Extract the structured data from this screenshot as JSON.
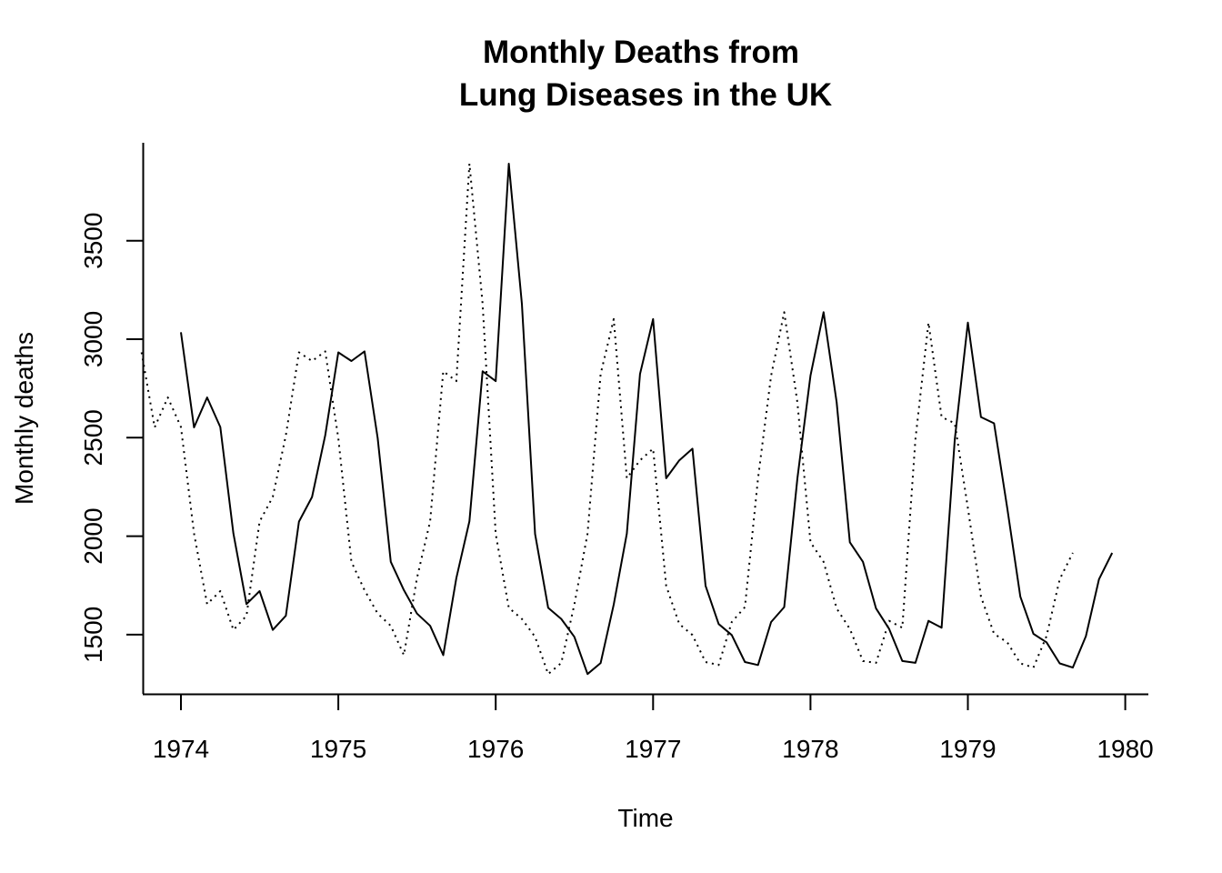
{
  "chart_data": {
    "type": "line",
    "title": [
      "Monthly Deaths from",
      "Lung Diseases in the UK"
    ],
    "xlabel": "Time",
    "ylabel": "Monthly deaths",
    "x_ticks": [
      1974,
      1975,
      1976,
      1977,
      1978,
      1979,
      1980
    ],
    "y_ticks": [
      1500,
      2000,
      2500,
      3000,
      3500
    ],
    "xlim": [
      1973.75,
      1980.16
    ],
    "ylim": [
      1200,
      4000
    ],
    "grid": false,
    "series": [
      {
        "style": "solid",
        "start": 1974.0,
        "step": 0.08333333,
        "values": [
          3035,
          2552,
          2704,
          2554,
          2014,
          1655,
          1721,
          1524,
          1596,
          2074,
          2199,
          2512,
          2933,
          2889,
          2938,
          2497,
          1870,
          1726,
          1607,
          1545,
          1396,
          1787,
          2076,
          2837,
          2787,
          3891,
          3179,
          2011,
          1636,
          1580,
          1489,
          1300,
          1356,
          1653,
          2013,
          2823,
          3102,
          2294,
          2385,
          2444,
          1748,
          1554,
          1498,
          1361,
          1346,
          1564,
          1640,
          2293,
          2815,
          3137,
          2679,
          1969,
          1870,
          1633,
          1529,
          1366,
          1357,
          1570,
          1535,
          2491,
          3084,
          2605,
          2573,
          2143,
          1693,
          1504,
          1461,
          1354,
          1333,
          1492,
          1781,
          1915
        ]
      },
      {
        "style": "dotted",
        "start": 1973.75,
        "step": 0.08333333,
        "values": [
          2933,
          2552,
          2704,
          2554,
          2014,
          1655,
          1721,
          1524,
          1596,
          2074,
          2199,
          2512,
          2933,
          2889,
          2938,
          2497,
          1870,
          1726,
          1607,
          1545,
          1396,
          1787,
          2076,
          2837,
          2787,
          3891,
          3179,
          2011,
          1636,
          1580,
          1489,
          1300,
          1356,
          1653,
          2013,
          2823,
          3102,
          2294,
          2385,
          2444,
          1748,
          1554,
          1498,
          1361,
          1346,
          1564,
          1640,
          2293,
          2815,
          3137,
          2679,
          1969,
          1870,
          1633,
          1529,
          1366,
          1357,
          1570,
          1535,
          2491,
          3084,
          2605,
          2573,
          2143,
          1693,
          1504,
          1461,
          1354,
          1333,
          1492,
          1781,
          1915
        ]
      }
    ]
  }
}
